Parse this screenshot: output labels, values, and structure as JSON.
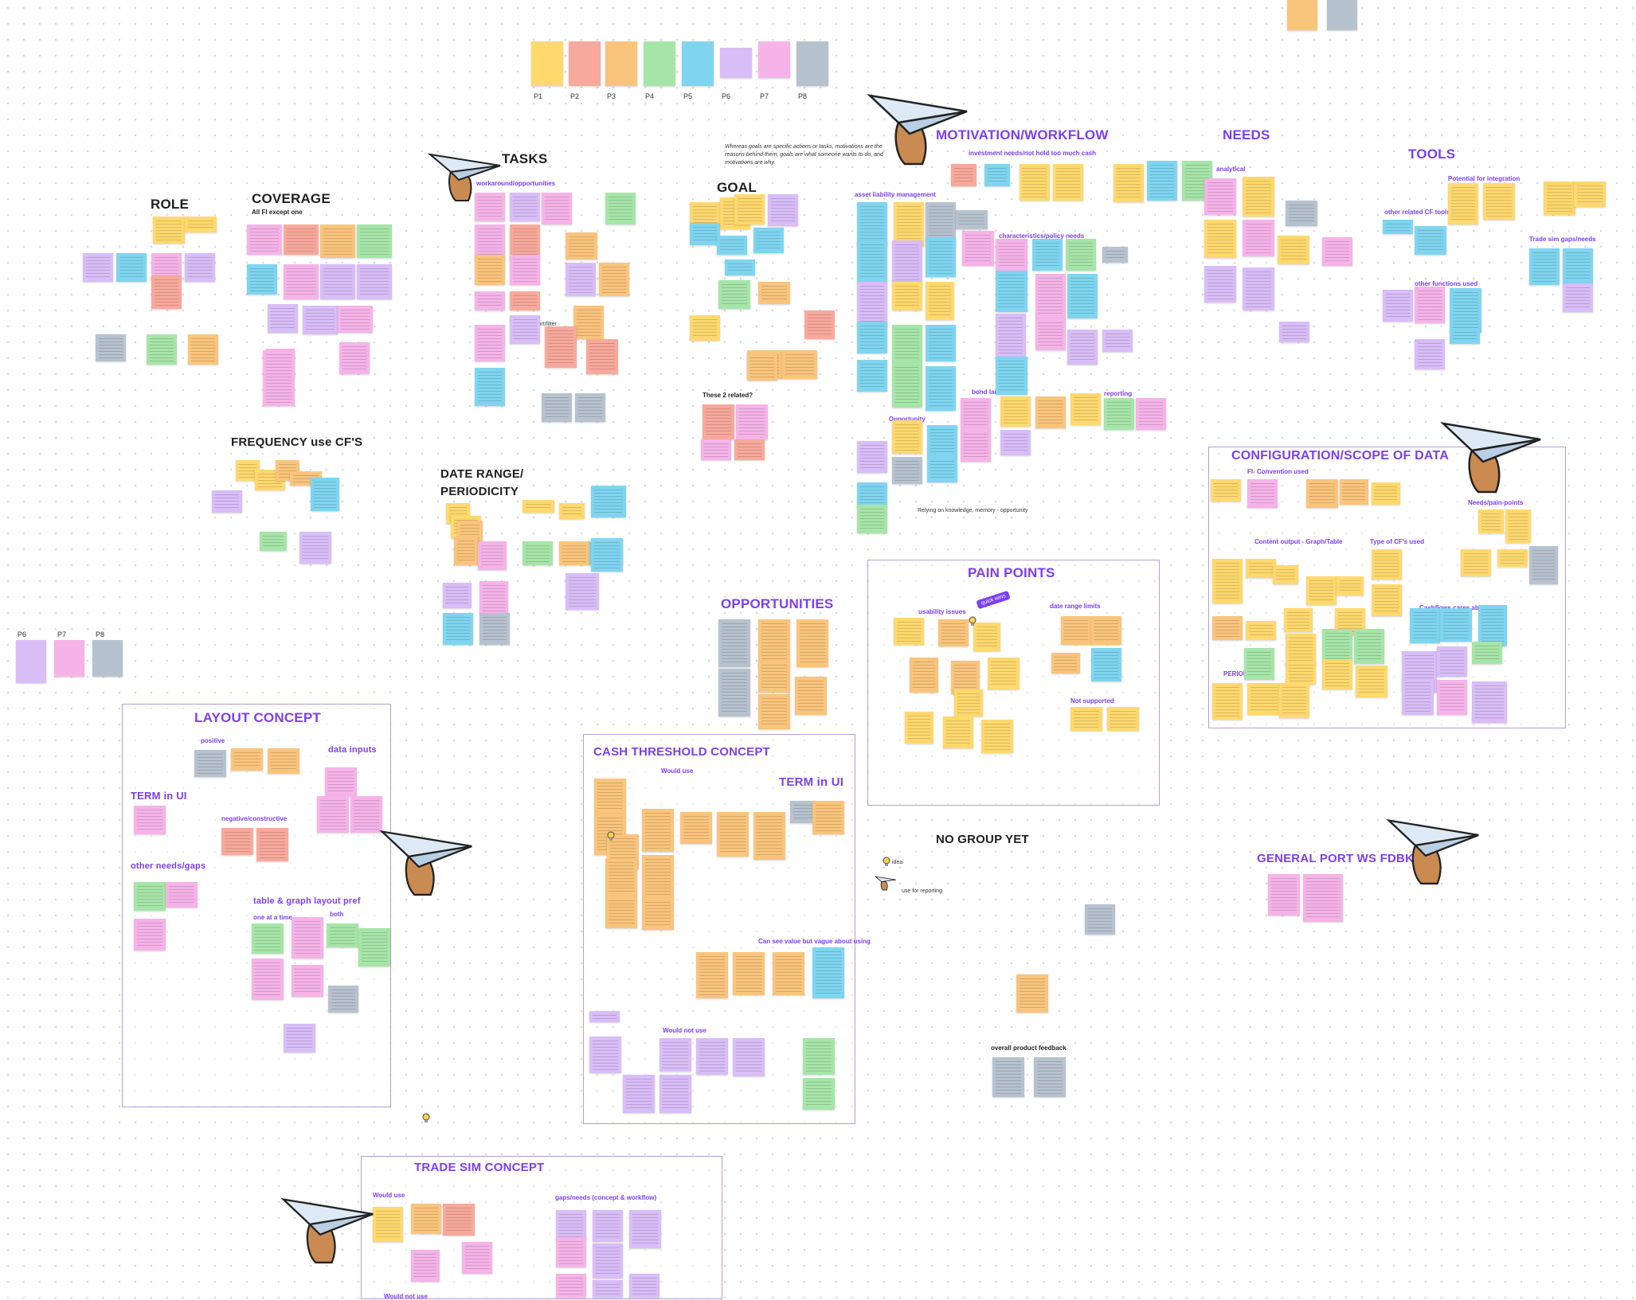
{
  "top_personas": [
    "P1",
    "P2",
    "P3",
    "P4",
    "P5",
    "P6",
    "P7",
    "P8"
  ],
  "side_personas": [
    "P6",
    "P7",
    "P8"
  ],
  "sections": {
    "role": "ROLE",
    "coverage": "COVERAGE",
    "coverage_sub": "All FI except one",
    "tasks": "TASKS",
    "tasks_sub": "workaround/opportunities",
    "goal": "GOAL",
    "motivation": "MOTIVATION/WORKFLOW",
    "needs": "NEEDS",
    "needs_sub": "analytical",
    "tools": "TOOLS",
    "tools_sub1": "Potential for integration",
    "tools_sub2": "other related CF tools",
    "tools_sub3": "other functions used",
    "tools_sub4": "Trade sim gaps/needs",
    "frequency": "FREQUENCY use  CF'S",
    "date_range": "DATE RANGE/\nPERIODICITY",
    "opportunities": "OPPORTUNITIES",
    "these_related": "These 2 related?",
    "config": "CONFIGURATION/SCOPE OF DATA",
    "config_sub1": "FI- Convention used",
    "config_sub2": "Needs/pain-points",
    "config_sub3": "Content output - Graph/Table",
    "config_sub4": "Type of CF's used",
    "config_sub5": "PERIODICITY",
    "config_sub6": "Cashflows cares about",
    "pain_points": "PAIN POINTS",
    "pain_sub1": "usability issues",
    "pain_sub2": "date range limits",
    "pain_sub3": "Not supported",
    "quick_wins": "quick wins",
    "layout": "LAYOUT CONCEPT",
    "layout_positive": "positive",
    "layout_data_inputs": "data inputs",
    "layout_term": "TERM in UI",
    "layout_negative": "negative/constructive",
    "layout_other": "other needs/gaps",
    "layout_table": "table & graph layout pref",
    "layout_one": "one at a time",
    "layout_both": "both",
    "cash": "CASH THRESHOLD CONCEPT",
    "cash_would_use": "Would use",
    "cash_term": "TERM in UI",
    "cash_can_see": "Can see value but vague about using",
    "cash_would_not": "Would not use",
    "no_group": "NO GROUP YET",
    "idea": "idea",
    "use_for_reporting": "use for reporting",
    "overall_feedback": "overall product feedback",
    "general_port": "GENERAL PORT WS FDBK",
    "trade_sim": "TRADE SIM CONCEPT",
    "trade_would_use": "Would use",
    "trade_gaps": "gaps/needs (concept & workflow)",
    "trade_would_not": "Would not use",
    "motivation_quote": "Whereas goals are specific actions or tasks, motivations are the reasons behind them; goals are what someone wants to do, and motivations are why.",
    "motivation_sub1": "investment needs/not hold too much cash",
    "motivation_sub2": "asset liability management",
    "motivation_sub3": "characteristics/policy needs",
    "motivation_sub4": "bond ladder",
    "motivation_sub5": "Opportunity",
    "motivation_sub6": "reporting",
    "relying": "Relying on knowledge, memory - opportunity",
    "sort_filter": "sort/filter"
  },
  "colors": {
    "yellow": "#ffd86e",
    "orange": "#f9c47c",
    "pink": "#f5b3e8",
    "lavender": "#d8bdf7",
    "blue": "#7fd5f0",
    "green": "#a6e5a8",
    "salmon": "#f7a99b",
    "gray": "#b7c2cf",
    "frame": "#b39ddb",
    "purple": "#7b3ff2"
  },
  "icons": [
    "paper-plane-hand-icon",
    "lightbulb-icon"
  ]
}
